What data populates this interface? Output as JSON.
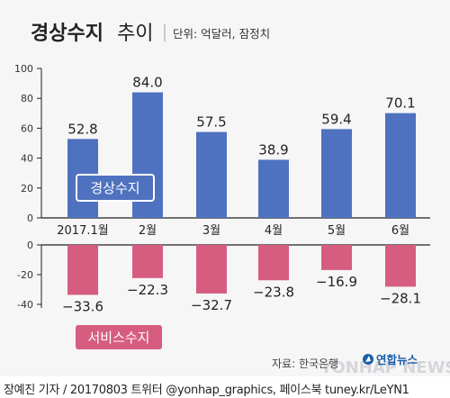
{
  "header": {
    "title_bold": "경상수지",
    "title_light": "추이",
    "unit_note": "단위: 억달러, 잠정치"
  },
  "chart_data": [
    {
      "type": "bar",
      "name": "경상수지",
      "categories": [
        "2017.1월",
        "2월",
        "3월",
        "4월",
        "5월",
        "6월"
      ],
      "values": [
        52.8,
        84.0,
        57.5,
        38.9,
        59.4,
        70.1
      ],
      "value_labels": [
        "52.8",
        "84.0",
        "57.5",
        "38.9",
        "59.4",
        "70.1"
      ],
      "ylim": [
        0,
        100
      ],
      "yticks": [
        "0",
        "20",
        "40",
        "60",
        "80",
        "100"
      ],
      "color": "#4f72c0",
      "label_badge_color": "#4f72c0"
    },
    {
      "type": "bar",
      "name": "서비스수지",
      "categories": [
        "2017.1월",
        "2월",
        "3월",
        "4월",
        "5월",
        "6월"
      ],
      "values": [
        -33.6,
        -22.3,
        -32.7,
        -23.8,
        -16.9,
        -28.1
      ],
      "value_labels": [
        "−33.6",
        "−22.3",
        "−32.7",
        "−23.8",
        "−16.9",
        "−28.1"
      ],
      "ylim": [
        -40,
        0
      ],
      "yticks": [
        "0",
        "-20",
        "-40"
      ],
      "color": "#d65d80",
      "label_badge_color": "#d65d80"
    }
  ],
  "source": "자료: 한국은행",
  "logo": "연합뉴스",
  "watermark": "YONHAP NEWS",
  "footer": "장예진 기자 / 20170803 트위터 @yonhap_graphics, 페이스북 tuney.kr/LeYN1"
}
